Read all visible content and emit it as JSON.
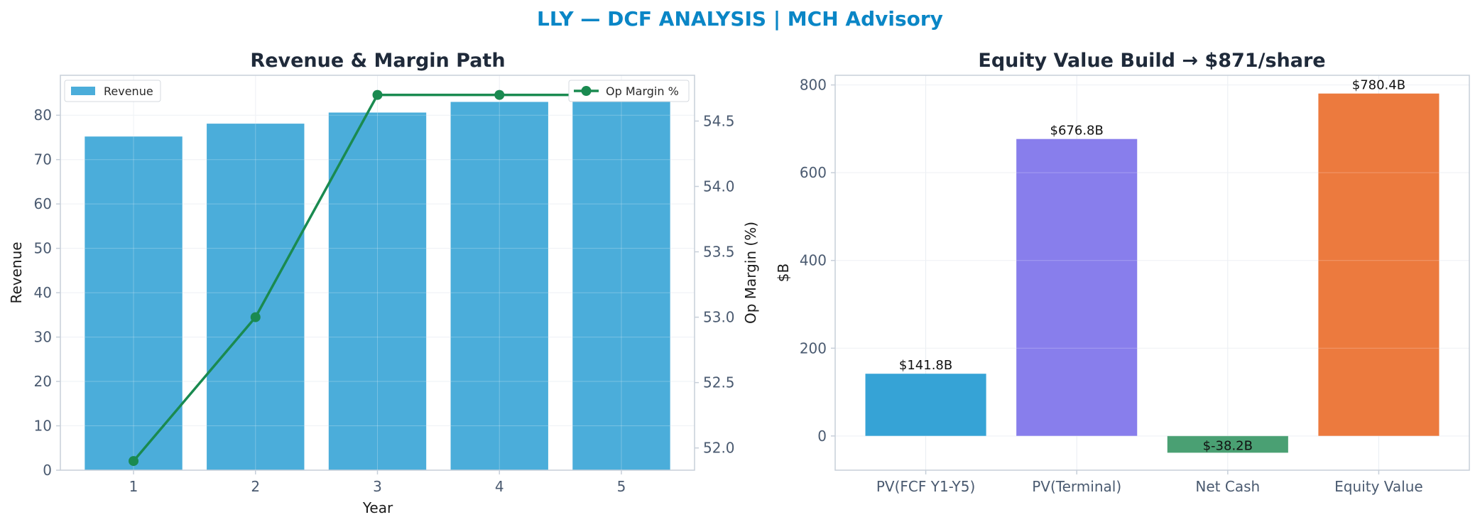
{
  "suptitle": "LLY — DCF ANALYSIS | MCH Advisory",
  "colors": {
    "suptitle": "#0a86c6",
    "revenue_bar": "#4badda",
    "margin_line": "#1a8a50",
    "pv_fcf": "#36a3d6",
    "pv_terminal": "#887eec",
    "net_cash": "#4aa073",
    "equity_value": "#ec7a3e",
    "axes": "#c7cfd9",
    "grid": "#e9edf2"
  },
  "chart_data": [
    {
      "type": "bar",
      "title": "Revenue & Margin Path",
      "xlabel": "Year",
      "ylabel": "Revenue",
      "y2label": "Op Margin (%)",
      "categories": [
        "1",
        "2",
        "3",
        "4",
        "5"
      ],
      "ylim": [
        0,
        89
      ],
      "yticks": [
        0,
        10,
        20,
        30,
        40,
        50,
        60,
        70,
        80
      ],
      "y2lim": [
        51.83,
        54.85
      ],
      "y2ticks": [
        52.0,
        52.5,
        53.0,
        53.5,
        54.0,
        54.5
      ],
      "grid": true,
      "series": [
        {
          "name": "Revenue",
          "kind": "bar",
          "axis": "left",
          "values": [
            75.2,
            78.1,
            80.6,
            83.0,
            85.5
          ]
        },
        {
          "name": "Op Margin %",
          "kind": "line",
          "axis": "right",
          "values": [
            51.9,
            53.0,
            54.7,
            54.7,
            54.7
          ]
        }
      ],
      "legend": [
        "upper left",
        "upper right"
      ]
    },
    {
      "type": "bar",
      "title": "Equity Value Build → $871/share",
      "xlabel": "",
      "ylabel": "$B",
      "categories": [
        "PV(FCF Y1-Y5)",
        "PV(Terminal)",
        "Net Cash",
        "Equity Value"
      ],
      "values": [
        141.8,
        676.8,
        -38.2,
        780.4
      ],
      "data_labels": [
        "$141.8B",
        "$676.8B",
        "$-38.2B",
        "$780.4B"
      ],
      "ylim": [
        -78,
        822
      ],
      "yticks": [
        0,
        200,
        400,
        600,
        800
      ],
      "grid": true
    }
  ]
}
